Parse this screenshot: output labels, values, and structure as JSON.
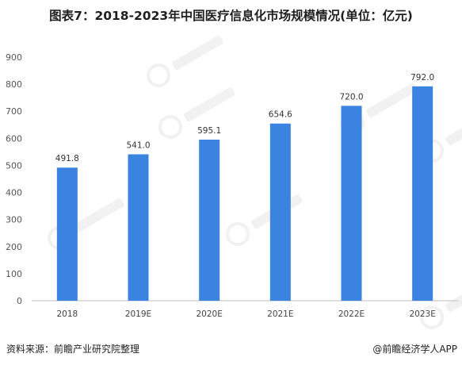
{
  "title": "图表7：2018-2023年中国医疗信息化市场规模情况(单位：亿元)",
  "source": "资料来源：前瞻产业研究院整理",
  "credit": "@前瞻经济学人APP",
  "colors": {
    "bar": "#3b83e0",
    "axis": "#bfbfbf",
    "watermark": "#d9d9d9"
  },
  "chart_data": {
    "type": "bar",
    "title": "图表7：2018-2023年中国医疗信息化市场规模情况(单位：亿元)",
    "xlabel": "",
    "ylabel": "",
    "categories": [
      "2018",
      "2019E",
      "2020E",
      "2021E",
      "2022E",
      "2023E"
    ],
    "values": [
      491.8,
      541.0,
      595.1,
      654.6,
      720.0,
      792.0
    ],
    "value_labels": [
      "491.8",
      "541.0",
      "595.1",
      "654.6",
      "720.0",
      "792.0"
    ],
    "ylim": [
      0,
      900
    ],
    "yticks": [
      "0",
      "100",
      "200",
      "300",
      "400",
      "500",
      "600",
      "700",
      "800",
      "900"
    ],
    "grid": false,
    "legend": "none"
  }
}
